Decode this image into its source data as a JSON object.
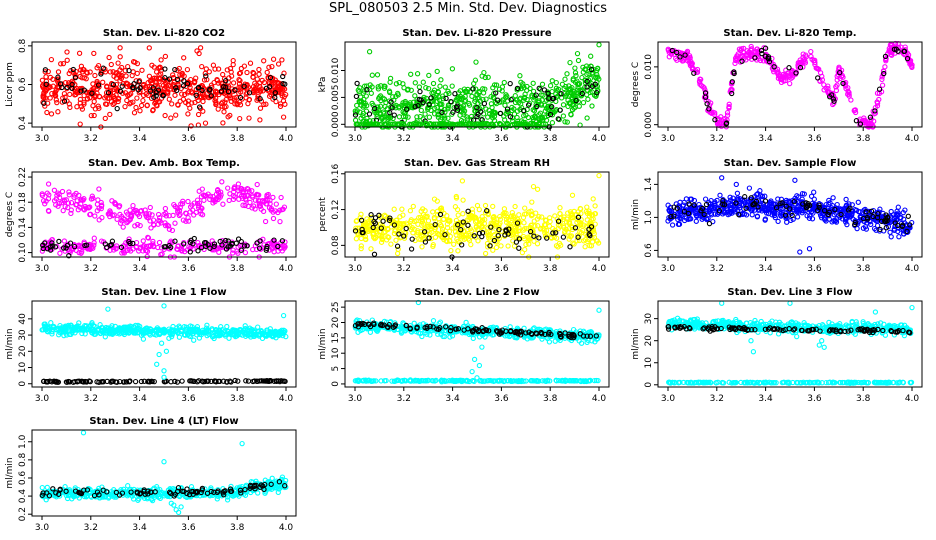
{
  "figure": {
    "title": "SPL_080503  2.5 Min. Std. Dev. Diagnostics"
  },
  "colors": {
    "red": "#ff0000",
    "green": "#00cc00",
    "magenta": "#ff00ff",
    "yellow": "#ffff00",
    "blue": "#0000ff",
    "cyan": "#00ffff",
    "black": "#000000"
  },
  "chart_data": [
    {
      "type": "scatter",
      "title": "Stan. Dev. Li-820 CO2",
      "ylabel": "Licor ppm",
      "xlim": [
        3.0,
        4.0
      ],
      "xticks": [
        "3.0",
        "3.2",
        "3.4",
        "3.6",
        "3.8",
        "4.0"
      ],
      "ylim": [
        0.38,
        0.82
      ],
      "yticks": [
        {
          "v": 0.4,
          "label": "0.4"
        },
        {
          "v": 0.6,
          "label": "0.6"
        },
        {
          "v": 0.8,
          "label": "0.8"
        }
      ],
      "series": [
        {
          "name": "all",
          "color": "red",
          "bands": [
            {
              "mean": 0.58,
              "sd": 0.065,
              "trend": 0
            }
          ],
          "density": 640
        },
        {
          "name": "subset",
          "color": "black",
          "bands": [
            {
              "mean": 0.58,
              "sd": 0.05,
              "trend": 0
            }
          ],
          "density": 75
        }
      ],
      "outliers": [
        {
          "x": 3.32,
          "y": 0.79,
          "color": "red"
        },
        {
          "x": 3.65,
          "y": 0.79,
          "color": "red"
        },
        {
          "x": 3.67,
          "y": 0.4,
          "color": "red"
        }
      ]
    },
    {
      "type": "scatter",
      "title": "Stan. Dev. Li-820 Pressure",
      "ylabel": "kPa",
      "xlim": [
        3.0,
        4.0
      ],
      "xticks": [
        "3.0",
        "3.2",
        "3.4",
        "3.6",
        "3.8",
        "4.0"
      ],
      "ylim": [
        -0.0005,
        0.0153
      ],
      "yticks": [
        {
          "v": 0.0,
          "label": "0.000"
        },
        {
          "v": 0.005,
          "label": "0.005"
        },
        {
          "v": 0.01,
          "label": "0.010"
        }
      ],
      "series": [
        {
          "name": "all",
          "color": "green",
          "bands": [
            {
              "mean": 0.0035,
              "sd": 0.0025,
              "trend": 0.0048,
              "trendStart": 0.8
            }
          ],
          "density": 640
        },
        {
          "name": "subset",
          "color": "black",
          "bands": [
            {
              "mean": 0.0035,
              "sd": 0.002,
              "trend": 0.0048,
              "trendStart": 0.8
            }
          ],
          "density": 75
        },
        {
          "name": "baseline",
          "color": "green",
          "bands": [
            {
              "mean": 0.0,
              "sd": 0.0001,
              "trend": 0,
              "xmax": 0.78
            }
          ],
          "density": 160
        }
      ],
      "outliers": [
        {
          "x": 3.06,
          "y": 0.0135,
          "color": "green"
        },
        {
          "x": 4.0,
          "y": 0.0148,
          "color": "green"
        },
        {
          "x": 3.68,
          "y": 0.0078,
          "color": "green"
        }
      ]
    },
    {
      "type": "scatter",
      "title": "Stan. Dev. Li-820 Temp.",
      "ylabel": "degrees C",
      "xlim": [
        3.0,
        4.0
      ],
      "xticks": [
        "3.0",
        "3.2",
        "3.4",
        "3.6",
        "3.8",
        "4.0"
      ],
      "ylim": [
        -0.0004,
        0.0143
      ],
      "yticks": [
        {
          "v": 0.0,
          "label": "0.000"
        },
        {
          "v": 0.01,
          "label": "0.010"
        }
      ],
      "pattern": "zigzag",
      "zigzag": [
        [
          3.0,
          0.0125
        ],
        [
          3.08,
          0.012
        ],
        [
          3.12,
          0.009
        ],
        [
          3.16,
          0.004
        ],
        [
          3.2,
          0.0003
        ],
        [
          3.24,
          0.0005
        ],
        [
          3.28,
          0.012
        ],
        [
          3.35,
          0.0125
        ],
        [
          3.4,
          0.0122
        ],
        [
          3.46,
          0.008
        ],
        [
          3.52,
          0.009
        ],
        [
          3.58,
          0.0125
        ],
        [
          3.64,
          0.007
        ],
        [
          3.68,
          0.004
        ],
        [
          3.7,
          0.0095
        ],
        [
          3.74,
          0.006
        ],
        [
          3.78,
          0.0003
        ],
        [
          3.84,
          0.0002
        ],
        [
          3.87,
          0.006
        ],
        [
          3.9,
          0.0125
        ],
        [
          3.94,
          0.0135
        ],
        [
          3.97,
          0.0128
        ],
        [
          4.0,
          0.0105
        ]
      ],
      "series": [
        {
          "name": "all",
          "color": "magenta",
          "density": 420
        },
        {
          "name": "subset",
          "color": "black",
          "density": 50
        }
      ],
      "outliers": []
    },
    {
      "type": "scatter",
      "title": "Stan. Dev. Amb. Box Temp.",
      "ylabel": "degrees C",
      "xlim": [
        3.0,
        4.0
      ],
      "xticks": [
        "3.0",
        "3.2",
        "3.4",
        "3.6",
        "3.8",
        "4.0"
      ],
      "ylim": [
        0.093,
        0.228
      ],
      "yticks": [
        {
          "v": 0.1,
          "label": "0.10"
        },
        {
          "v": 0.14,
          "label": "0.14"
        },
        {
          "v": 0.18,
          "label": "0.18"
        },
        {
          "v": 0.22,
          "label": "0.22"
        }
      ],
      "series": [
        {
          "name": "upper",
          "color": "magenta",
          "bands": [
            {
              "mean": 0.19,
              "sd": 0.01,
              "trend": 0
            }
          ],
          "curve": [
            [
              0.0,
              0.19
            ],
            [
              0.35,
              0.16
            ],
            [
              0.5,
              0.15
            ],
            [
              0.75,
              0.2
            ],
            [
              1.0,
              0.17
            ]
          ],
          "density": 300
        },
        {
          "name": "lower",
          "color": "magenta",
          "bands": [
            {
              "mean": 0.11,
              "sd": 0.006,
              "trend": 0
            }
          ],
          "density": 240
        },
        {
          "name": "subset",
          "color": "black",
          "bands": [
            {
              "mean": 0.112,
              "sd": 0.005,
              "trend": 0
            }
          ],
          "density": 70
        }
      ],
      "outliers": [
        {
          "x": 3.11,
          "y": 0.095,
          "color": "black"
        }
      ]
    },
    {
      "type": "scatter",
      "title": "Stan. Dev. Gas Stream RH",
      "ylabel": "percent",
      "xlim": [
        3.0,
        4.0
      ],
      "xticks": [
        "3.0",
        "3.2",
        "3.4",
        "3.6",
        "3.8",
        "4.0"
      ],
      "ylim": [
        0.067,
        0.162
      ],
      "yticks": [
        {
          "v": 0.08,
          "label": "0.08"
        },
        {
          "v": 0.12,
          "label": "0.12"
        },
        {
          "v": 0.16,
          "label": "0.16"
        }
      ],
      "series": [
        {
          "name": "all",
          "color": "yellow",
          "bands": [
            {
              "mean": 0.1,
              "sd": 0.012,
              "trend": 0
            }
          ],
          "density": 620
        },
        {
          "name": "subset",
          "color": "black",
          "bands": [
            {
              "mean": 0.098,
              "sd": 0.01,
              "trend": 0
            }
          ],
          "density": 70
        }
      ],
      "outliers": [
        {
          "x": 3.44,
          "y": 0.152,
          "color": "yellow"
        },
        {
          "x": 4.0,
          "y": 0.158,
          "color": "yellow"
        },
        {
          "x": 3.08,
          "y": 0.07,
          "color": "black"
        }
      ]
    },
    {
      "type": "scatter",
      "title": "Stan. Dev. Sample Flow",
      "ylabel": "ml/min",
      "xlim": [
        3.0,
        4.0
      ],
      "xticks": [
        "3.0",
        "3.2",
        "3.4",
        "3.6",
        "3.8",
        "4.0"
      ],
      "ylim": [
        0.52,
        1.55
      ],
      "yticks": [
        {
          "v": 0.6,
          "label": "0.6"
        },
        {
          "v": 1.0,
          "label": "1.0"
        },
        {
          "v": 1.4,
          "label": "1.4"
        }
      ],
      "series": [
        {
          "name": "all",
          "color": "blue",
          "bands": [
            {
              "mean": 1.08,
              "sd": 0.07,
              "trend": 0
            }
          ],
          "curve": [
            [
              0.0,
              1.05
            ],
            [
              0.3,
              1.15
            ],
            [
              0.6,
              1.1
            ],
            [
              0.8,
              1.0
            ],
            [
              1.0,
              0.9
            ]
          ],
          "density": 600
        },
        {
          "name": "subset",
          "color": "black",
          "bands": [
            {
              "mean": 1.05,
              "sd": 0.06,
              "trend": 0
            }
          ],
          "curve": [
            [
              0.0,
              1.05
            ],
            [
              0.3,
              1.15
            ],
            [
              0.6,
              1.1
            ],
            [
              0.8,
              1.0
            ],
            [
              1.0,
              0.9
            ]
          ],
          "density": 80
        }
      ],
      "outliers": [
        {
          "x": 3.22,
          "y": 1.48,
          "color": "blue"
        },
        {
          "x": 3.52,
          "y": 1.45,
          "color": "blue"
        },
        {
          "x": 3.54,
          "y": 0.58,
          "color": "blue"
        },
        {
          "x": 3.58,
          "y": 0.62,
          "color": "blue"
        },
        {
          "x": 3.28,
          "y": 1.4,
          "color": "blue"
        }
      ]
    },
    {
      "type": "scatter",
      "title": "Stan. Dev. Line 1 Flow",
      "ylabel": "ml/min",
      "xlim": [
        3.0,
        4.0
      ],
      "xticks": [
        "3.0",
        "3.2",
        "3.4",
        "3.6",
        "3.8",
        "4.0"
      ],
      "ylim": [
        -2,
        51
      ],
      "yticks": [
        {
          "v": 0,
          "label": "0"
        },
        {
          "v": 10,
          "label": "10"
        },
        {
          "v": 20,
          "label": "20"
        },
        {
          "v": 30,
          "label": "30"
        },
        {
          "v": 40,
          "label": "40"
        }
      ],
      "series": [
        {
          "name": "all",
          "color": "cyan",
          "bands": [
            {
              "mean": 34,
              "sd": 1.6,
              "trend": -3
            }
          ],
          "density": 520
        },
        {
          "name": "subset",
          "color": "black",
          "bands": [
            {
              "mean": 1.2,
              "sd": 0.2,
              "trend": 0.5
            }
          ],
          "density": 130
        }
      ],
      "spike": {
        "x": 3.5,
        "color": "cyan",
        "points": [
          [
            3.47,
            12
          ],
          [
            3.48,
            18
          ],
          [
            3.49,
            25
          ],
          [
            3.5,
            8
          ],
          [
            3.51,
            20
          ],
          [
            3.5,
            4
          ],
          [
            3.52,
            28
          ]
        ]
      },
      "outliers": [
        {
          "x": 3.5,
          "y": 48,
          "color": "cyan"
        },
        {
          "x": 3.27,
          "y": 46,
          "color": "cyan"
        },
        {
          "x": 3.99,
          "y": 42,
          "color": "cyan"
        }
      ]
    },
    {
      "type": "scatter",
      "title": "Stan. Dev. Line 2 Flow",
      "ylabel": "ml/min",
      "xlim": [
        3.0,
        4.0
      ],
      "xticks": [
        "3.0",
        "3.2",
        "3.4",
        "3.6",
        "3.8",
        "4.0"
      ],
      "ylim": [
        -1,
        27
      ],
      "yticks": [
        {
          "v": 0,
          "label": "0"
        },
        {
          "v": 5,
          "label": "5"
        },
        {
          "v": 10,
          "label": "10"
        },
        {
          "v": 15,
          "label": "15"
        },
        {
          "v": 20,
          "label": "20"
        },
        {
          "v": 25,
          "label": "25"
        }
      ],
      "series": [
        {
          "name": "all",
          "color": "cyan",
          "bands": [
            {
              "mean": 19,
              "sd": 0.9,
              "trend": -3.5
            }
          ],
          "density": 480
        },
        {
          "name": "subset",
          "color": "black",
          "bands": [
            {
              "mean": 19.5,
              "sd": 0.4,
              "trend": -4
            }
          ],
          "density": 110
        },
        {
          "name": "baseline",
          "color": "cyan",
          "bands": [
            {
              "mean": 1.0,
              "sd": 0.1,
              "trend": 0
            }
          ],
          "density": 200
        }
      ],
      "spike": {
        "x": 3.5,
        "color": "cyan",
        "points": [
          [
            3.48,
            4
          ],
          [
            3.49,
            8
          ],
          [
            3.5,
            2
          ],
          [
            3.51,
            6
          ],
          [
            3.52,
            12
          ]
        ]
      },
      "outliers": [
        {
          "x": 3.26,
          "y": 26.5,
          "color": "cyan"
        },
        {
          "x": 4.0,
          "y": 24,
          "color": "cyan"
        }
      ]
    },
    {
      "type": "scatter",
      "title": "Stan. Dev. Line 3 Flow",
      "ylabel": "ml/min",
      "xlim": [
        3.0,
        4.0
      ],
      "xticks": [
        "3.0",
        "3.2",
        "3.4",
        "3.6",
        "3.8",
        "4.0"
      ],
      "ylim": [
        -1,
        38
      ],
      "yticks": [
        {
          "v": 0,
          "label": "0"
        },
        {
          "v": 10,
          "label": "10"
        },
        {
          "v": 20,
          "label": "20"
        },
        {
          "v": 30,
          "label": "30"
        }
      ],
      "series": [
        {
          "name": "all",
          "color": "cyan",
          "bands": [
            {
              "mean": 27.5,
              "sd": 1.2,
              "trend": -2.5
            }
          ],
          "density": 480
        },
        {
          "name": "subset",
          "color": "black",
          "bands": [
            {
              "mean": 26,
              "sd": 0.4,
              "trend": -2
            }
          ],
          "density": 110
        },
        {
          "name": "baseline",
          "color": "cyan",
          "bands": [
            {
              "mean": 1.0,
              "sd": 0.1,
              "trend": 0
            }
          ],
          "density": 200
        }
      ],
      "spike": {
        "x": 3.63,
        "color": "cyan",
        "points": [
          [
            3.62,
            18
          ],
          [
            3.63,
            20
          ],
          [
            3.64,
            17
          ],
          [
            3.35,
            15
          ],
          [
            3.34,
            20
          ]
        ]
      },
      "outliers": [
        {
          "x": 3.22,
          "y": 37,
          "color": "cyan"
        },
        {
          "x": 3.5,
          "y": 37,
          "color": "cyan"
        },
        {
          "x": 4.0,
          "y": 35,
          "color": "cyan"
        },
        {
          "x": 3.85,
          "y": 33,
          "color": "cyan"
        }
      ]
    },
    {
      "type": "scatter",
      "title": "Stan. Dev. Line 4 (LT) Flow",
      "ylabel": "ml/min",
      "xlim": [
        3.0,
        4.0
      ],
      "xticks": [
        "3.0",
        "3.2",
        "3.4",
        "3.6",
        "3.8",
        "4.0"
      ],
      "ylim": [
        0.18,
        1.13
      ],
      "yticks": [
        {
          "v": 0.2,
          "label": "0.2"
        },
        {
          "v": 0.4,
          "label": "0.4"
        },
        {
          "v": 0.6,
          "label": "0.6"
        },
        {
          "v": 0.8,
          "label": "0.8"
        },
        {
          "v": 1.0,
          "label": "1.0"
        }
      ],
      "series": [
        {
          "name": "all",
          "color": "cyan",
          "bands": [
            {
              "mean": 0.43,
              "sd": 0.03,
              "trend": 0.12,
              "trendStart": 0.75
            }
          ],
          "density": 480
        },
        {
          "name": "subset",
          "color": "black",
          "bands": [
            {
              "mean": 0.44,
              "sd": 0.025,
              "trend": 0.12,
              "trendStart": 0.75
            }
          ],
          "density": 90
        }
      ],
      "spike": {
        "x": 3.55,
        "color": "cyan",
        "points": [
          [
            3.54,
            0.3
          ],
          [
            3.55,
            0.25
          ],
          [
            3.56,
            0.22
          ],
          [
            3.53,
            0.32
          ],
          [
            3.57,
            0.28
          ]
        ]
      },
      "outliers": [
        {
          "x": 3.17,
          "y": 1.1,
          "color": "cyan"
        },
        {
          "x": 3.82,
          "y": 0.98,
          "color": "cyan"
        },
        {
          "x": 3.5,
          "y": 0.78,
          "color": "cyan"
        }
      ]
    }
  ]
}
